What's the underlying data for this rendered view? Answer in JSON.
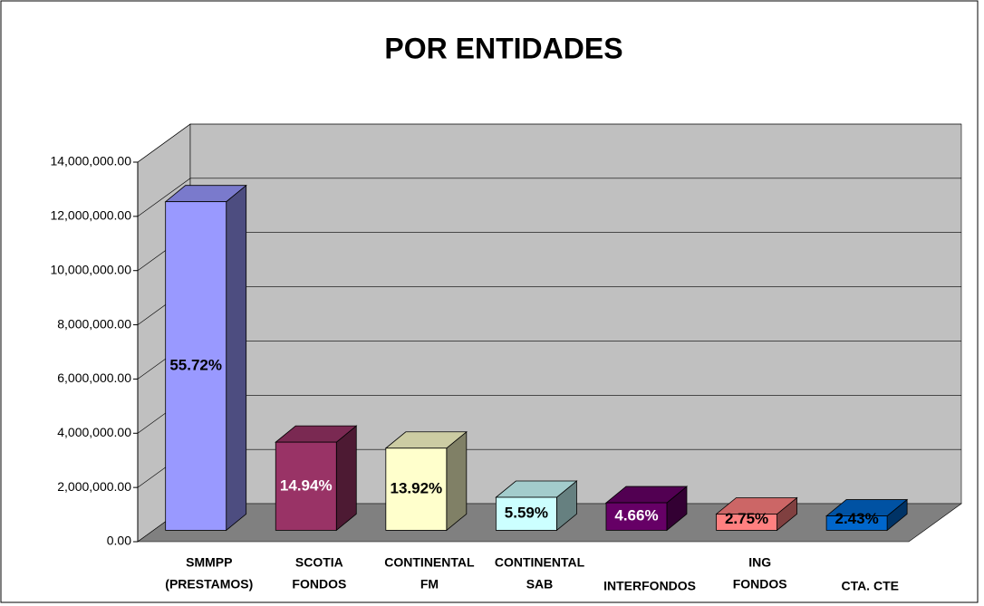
{
  "chart_data": {
    "type": "bar3d",
    "title": "POR ENTIDADES",
    "categories": [
      [
        "SMMPP",
        "(PRESTAMOS)"
      ],
      [
        "SCOTIA",
        "FONDOS"
      ],
      [
        "CONTINENTAL",
        "FM"
      ],
      [
        "CONTINENTAL",
        "SAB"
      ],
      [
        "INTERFONDOS"
      ],
      [
        "ING",
        "FONDOS"
      ],
      [
        "CTA. CTE"
      ]
    ],
    "values": [
      12120000,
      3250000,
      3028000,
      1216000,
      1014000,
      598000,
      529000
    ],
    "share_labels": [
      "55.72%",
      "14.94%",
      "13.92%",
      "5.59%",
      "4.66%",
      "2.75%",
      "2.43%"
    ],
    "colors": [
      "#9999ff",
      "#993366",
      "#ffffcc",
      "#ccffff",
      "#660066",
      "#ff8080",
      "#0066cc"
    ],
    "label_colors": [
      "#000000",
      "#ffffff",
      "#000000",
      "#000000",
      "#ffffff",
      "#000000",
      "#000000"
    ],
    "ylim": [
      0,
      14000000
    ],
    "yticks": [
      {
        "value": 0,
        "label": "0.00"
      },
      {
        "value": 2000000,
        "label": "2,000,000.00"
      },
      {
        "value": 4000000,
        "label": "4,000,000.00"
      },
      {
        "value": 6000000,
        "label": "6,000,000.00"
      },
      {
        "value": 8000000,
        "label": "8,000,000.00"
      },
      {
        "value": 10000000,
        "label": "10,000,000.00"
      },
      {
        "value": 12000000,
        "label": "12,000,000.00"
      },
      {
        "value": 14000000,
        "label": "14,000,000.00"
      }
    ],
    "grid": true
  }
}
